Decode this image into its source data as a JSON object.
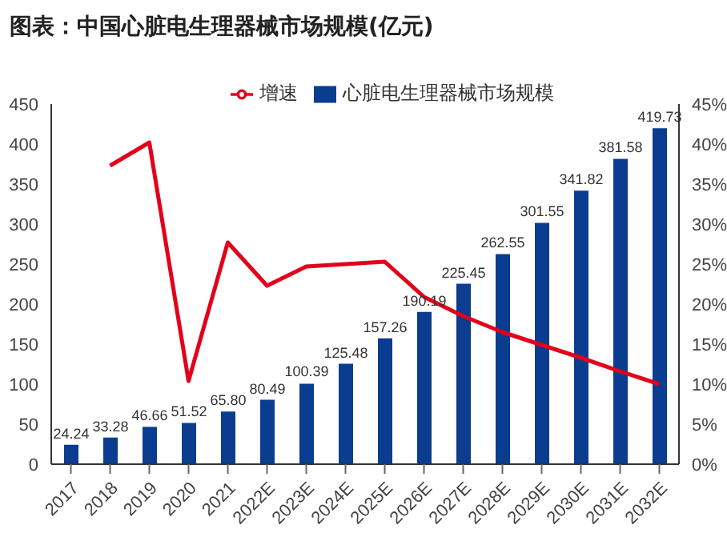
{
  "chart_data": {
    "type": "bar",
    "title": "图表：中国心脏电生理器械市场规模(亿元)",
    "categories": [
      "2017",
      "2018",
      "2019",
      "2020",
      "2021",
      "2022E",
      "2023E",
      "2024E",
      "2025E",
      "2026E",
      "2027E",
      "2028E",
      "2029E",
      "2030E",
      "2031E",
      "2032E"
    ],
    "series": [
      {
        "name": "心脏电生理器械市场规模",
        "color": "#0a3d8f",
        "values": [
          24.24,
          33.28,
          46.66,
          51.52,
          65.8,
          80.49,
          100.39,
          125.48,
          157.26,
          190.19,
          225.45,
          262.55,
          301.55,
          341.82,
          381.58,
          419.73
        ],
        "value_labels": [
          "24.24",
          "33.28",
          "46.66",
          "51.52",
          "65.80",
          "80.49",
          "100.39",
          "125.48",
          "157.26",
          "190.19",
          "225.45",
          "262.55",
          "301.55",
          "341.82",
          "381.58",
          "419.73"
        ]
      },
      {
        "name": "增速",
        "type": "line",
        "axis": "y2",
        "color": "#e3001b",
        "values": [
          null,
          37.3,
          40.2,
          10.4,
          27.7,
          22.3,
          24.7,
          25.0,
          25.3,
          20.9,
          18.5,
          16.5,
          14.9,
          13.3,
          11.6,
          10.0
        ]
      }
    ],
    "ylim": [
      0,
      450
    ],
    "yticks": [
      0,
      50,
      100,
      150,
      200,
      250,
      300,
      350,
      400,
      450
    ],
    "y2lim": [
      0,
      45
    ],
    "y2ticks": [
      {
        "value": 0,
        "label": "0%"
      },
      {
        "value": 5,
        "label": "5%"
      },
      {
        "value": 10,
        "label": "10%"
      },
      {
        "value": 15,
        "label": "15%"
      },
      {
        "value": 20,
        "label": "20%"
      },
      {
        "value": 25,
        "label": "25%"
      },
      {
        "value": 30,
        "label": "30%"
      },
      {
        "value": 35,
        "label": "35%"
      },
      {
        "value": 40,
        "label": "40%"
      },
      {
        "value": 45,
        "label": "45%"
      }
    ],
    "legend": "top",
    "grid": false,
    "marker": "none",
    "line_style": "solid"
  }
}
